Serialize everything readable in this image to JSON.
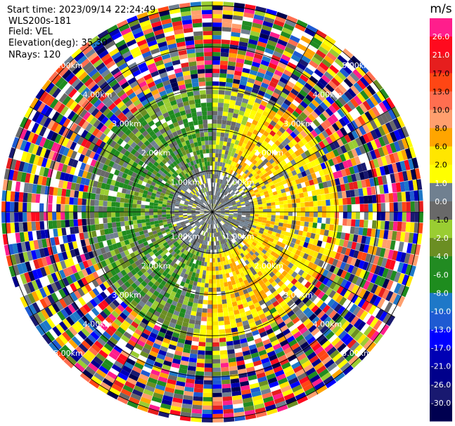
{
  "header": {
    "start_time": "Start time: 2023/09/14 22:24:49",
    "instrument": "WLS200s-181",
    "field": "Field: VEL",
    "elevation": "Elevation(deg): 35.30",
    "nrays": "NRays: 120"
  },
  "range_labels": [
    "1.00km",
    "2.00km",
    "3.00km",
    "4.00km",
    "5.00km"
  ],
  "colorbar": {
    "unit": "m/s",
    "ticks": [
      "26.0",
      "21.0",
      "17.0",
      "13.0",
      "10.0",
      "8.0",
      "6.0",
      "2.0",
      "1.0",
      "0.0",
      "-1.0",
      "-2.0",
      "-4.0",
      "-6.0",
      "-8.0",
      "-10.0",
      "-13.0",
      "-17.0",
      "-21.0",
      "-26.0",
      "-30.0"
    ],
    "colors": [
      "#ff1e8c",
      "#ff0a1e",
      "#e61e1e",
      "#ff4614",
      "#ff6e50",
      "#ff9f6e",
      "#ffa500",
      "#ffe600",
      "#ffff00",
      "#708090",
      "#696969",
      "#9acd32",
      "#6b8e23",
      "#228b22",
      "#1e8c1e",
      "#1e78c8",
      "#1e5ad2",
      "#0000ff",
      "#0000b4",
      "#00008b",
      "#191970",
      "#000050"
    ]
  },
  "chart_data": {
    "type": "ppi",
    "field": "VEL",
    "units": "m/s",
    "nrays": 120,
    "elevation_deg": 35.3,
    "max_range_km": 5.0,
    "range_rings_km": [
      1,
      2,
      3,
      4,
      5
    ]
  }
}
